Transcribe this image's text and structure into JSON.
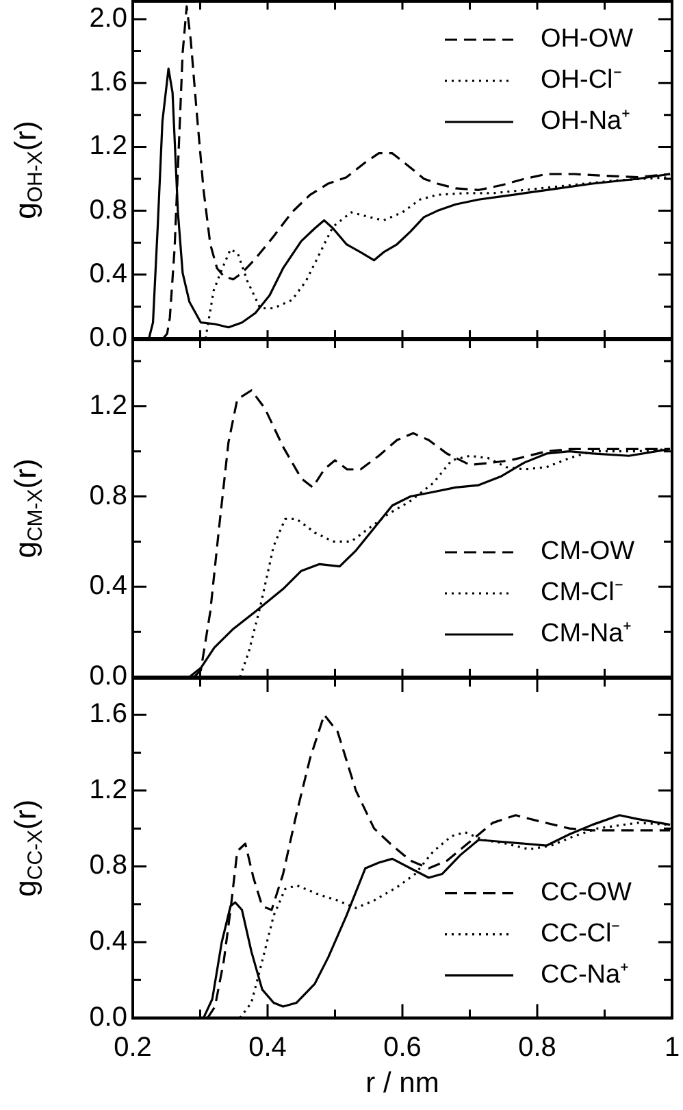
{
  "chart_data": [
    {
      "type": "line",
      "ylabel": "g$_{OH-X}$(r)",
      "xlim": [
        0.2,
        1.0
      ],
      "xticks": [
        {
          "value": 0.2,
          "label": null
        },
        {
          "value": 0.3,
          "label": null
        },
        {
          "value": 0.4,
          "label": null
        },
        {
          "value": 0.5,
          "label": null
        },
        {
          "value": 0.6,
          "label": null
        },
        {
          "value": 0.7,
          "label": null
        },
        {
          "value": 0.8,
          "label": null
        },
        {
          "value": 0.9,
          "label": null
        },
        {
          "value": 1.0,
          "label": null
        }
      ],
      "ylim": [
        0,
        2.12
      ],
      "yticks": [
        {
          "value": 0,
          "label": "0.0"
        },
        {
          "value": 0.2,
          "label": null
        },
        0.4,
        {
          "value": 0.6,
          "label": null
        },
        0.8,
        {
          "value": 1.0,
          "label": null
        },
        1.2,
        {
          "value": 1.4,
          "label": null
        },
        1.6,
        {
          "value": 1.8,
          "label": null
        },
        {
          "value": 2.0,
          "label": "2.0"
        }
      ],
      "tick_labels": "y",
      "legend": "top right",
      "marker": "none",
      "series": [
        {
          "name": "OH-OW",
          "color": "#000000",
          "line_style": "dashed",
          "x": [
            0.245,
            0.251,
            0.255,
            0.262,
            0.269,
            0.274,
            0.28,
            0.286,
            0.295,
            0.305,
            0.315,
            0.325,
            0.335,
            0.349,
            0.362,
            0.382,
            0.409,
            0.436,
            0.463,
            0.49,
            0.517,
            0.544,
            0.565,
            0.585,
            0.612,
            0.632,
            0.652,
            0.679,
            0.713,
            0.747,
            0.781,
            0.814,
            0.855,
            0.895,
            0.949,
            0.997
          ],
          "values": [
            0,
            0.03,
            0.13,
            0.56,
            1.27,
            1.79,
            2.08,
            1.87,
            1.41,
            0.93,
            0.59,
            0.44,
            0.39,
            0.37,
            0.41,
            0.5,
            0.64,
            0.79,
            0.9,
            0.97,
            1.01,
            1.1,
            1.16,
            1.16,
            1.07,
            1.0,
            0.97,
            0.94,
            0.93,
            0.96,
            1.0,
            1.03,
            1.03,
            1.02,
            1.01,
            1.03
          ]
        },
        {
          "name": "OH-Cl⁻",
          "color": "#000000",
          "line_style": "dotted",
          "x": [
            0.308,
            0.32,
            0.33,
            0.345,
            0.356,
            0.37,
            0.389,
            0.409,
            0.436,
            0.457,
            0.477,
            0.497,
            0.524,
            0.551,
            0.572,
            0.6,
            0.626,
            0.652,
            0.693,
            0.734,
            0.781,
            0.849,
            0.916,
            0.997
          ],
          "values": [
            0,
            0.3,
            0.41,
            0.56,
            0.53,
            0.36,
            0.19,
            0.19,
            0.24,
            0.36,
            0.53,
            0.7,
            0.79,
            0.76,
            0.74,
            0.79,
            0.87,
            0.9,
            0.91,
            0.91,
            0.93,
            0.96,
            0.99,
            1.01
          ]
        },
        {
          "name": "OH-Na⁺",
          "color": "#000000",
          "line_style": "solid",
          "x": [
            0.224,
            0.23,
            0.237,
            0.244,
            0.253,
            0.259,
            0.267,
            0.274,
            0.284,
            0.301,
            0.322,
            0.342,
            0.362,
            0.382,
            0.403,
            0.423,
            0.45,
            0.47,
            0.484,
            0.497,
            0.517,
            0.538,
            0.558,
            0.572,
            0.592,
            0.612,
            0.632,
            0.652,
            0.679,
            0.713,
            0.747,
            0.781,
            0.814,
            0.882,
            0.949,
            0.997
          ],
          "values": [
            0,
            0.1,
            0.7,
            1.36,
            1.69,
            1.54,
            0.79,
            0.41,
            0.23,
            0.1,
            0.09,
            0.07,
            0.1,
            0.16,
            0.27,
            0.44,
            0.61,
            0.69,
            0.74,
            0.69,
            0.59,
            0.54,
            0.49,
            0.54,
            0.59,
            0.67,
            0.76,
            0.8,
            0.84,
            0.87,
            0.89,
            0.91,
            0.93,
            0.97,
            1.0,
            1.03
          ]
        }
      ]
    },
    {
      "type": "line",
      "ylabel": "g$_{CM-X}$(r)",
      "xlim": [
        0.2,
        1.0
      ],
      "xticks": [
        {
          "value": 0.2,
          "label": null
        },
        {
          "value": 0.3,
          "label": null
        },
        {
          "value": 0.4,
          "label": null
        },
        {
          "value": 0.5,
          "label": null
        },
        {
          "value": 0.6,
          "label": null
        },
        {
          "value": 0.7,
          "label": null
        },
        {
          "value": 0.8,
          "label": null
        },
        {
          "value": 0.9,
          "label": null
        },
        {
          "value": 1.0,
          "label": null
        }
      ],
      "ylim": [
        0,
        1.5
      ],
      "yticks": [
        {
          "value": 0,
          "label": "0.0"
        },
        {
          "value": 0.2,
          "label": null
        },
        0.4,
        {
          "value": 0.6,
          "label": null
        },
        0.8,
        {
          "value": 1.0,
          "label": null
        },
        1.2,
        {
          "value": 1.4,
          "label": null
        }
      ],
      "tick_labels": "y",
      "legend": "bottom right",
      "marker": "none",
      "series": [
        {
          "name": "CM-OW",
          "color": "#000000",
          "line_style": "dashed",
          "x": [
            0.291,
            0.301,
            0.315,
            0.328,
            0.342,
            0.355,
            0.376,
            0.396,
            0.423,
            0.45,
            0.467,
            0.484,
            0.5,
            0.518,
            0.538,
            0.565,
            0.592,
            0.616,
            0.639,
            0.666,
            0.7,
            0.734,
            0.76,
            0.814,
            0.848,
            0.916,
            0.997
          ],
          "values": [
            0,
            0.03,
            0.29,
            0.66,
            1.04,
            1.23,
            1.27,
            1.19,
            1.02,
            0.88,
            0.84,
            0.92,
            0.96,
            0.92,
            0.92,
            0.98,
            1.05,
            1.08,
            1.05,
            0.99,
            0.94,
            0.95,
            0.96,
            1.0,
            1.01,
            1.01,
            1.01
          ]
        },
        {
          "name": "CM-Cl⁻",
          "color": "#000000",
          "line_style": "dotted",
          "x": [
            0.359,
            0.372,
            0.389,
            0.409,
            0.426,
            0.443,
            0.47,
            0.497,
            0.524,
            0.551,
            0.578,
            0.612,
            0.646,
            0.673,
            0.7,
            0.727,
            0.754,
            0.781,
            0.814,
            0.848,
            0.882,
            0.949,
            0.997
          ],
          "values": [
            0,
            0.11,
            0.31,
            0.58,
            0.7,
            0.7,
            0.64,
            0.6,
            0.6,
            0.66,
            0.72,
            0.78,
            0.86,
            0.96,
            0.98,
            0.97,
            0.93,
            0.92,
            0.93,
            0.97,
            1.0,
            1.0,
            1.01
          ]
        },
        {
          "name": "CM-Na⁺",
          "color": "#000000",
          "line_style": "solid",
          "x": [
            0.284,
            0.301,
            0.321,
            0.348,
            0.382,
            0.423,
            0.45,
            0.477,
            0.507,
            0.531,
            0.558,
            0.585,
            0.612,
            0.646,
            0.679,
            0.713,
            0.747,
            0.781,
            0.814,
            0.848,
            0.882,
            0.936,
            0.997
          ],
          "values": [
            0,
            0.04,
            0.13,
            0.21,
            0.29,
            0.39,
            0.47,
            0.5,
            0.49,
            0.56,
            0.66,
            0.76,
            0.8,
            0.82,
            0.84,
            0.85,
            0.89,
            0.95,
            0.99,
            1.0,
            0.99,
            0.98,
            1.01
          ]
        }
      ]
    },
    {
      "type": "line",
      "xlabel": "r / nm",
      "ylabel": "g$_{CC-X}$(r)",
      "xlim": [
        0.2,
        1.0
      ],
      "xticks": [
        0.2,
        {
          "value": 0.3,
          "label": null
        },
        0.4,
        {
          "value": 0.5,
          "label": null
        },
        0.6,
        {
          "value": 0.7,
          "label": null
        },
        0.8,
        {
          "value": 0.9,
          "label": null
        },
        {
          "value": 1.0,
          "label": "1"
        }
      ],
      "ylim": [
        0,
        1.8
      ],
      "yticks": [
        {
          "value": 0,
          "label": "0.0"
        },
        {
          "value": 0.2,
          "label": null
        },
        0.4,
        {
          "value": 0.6,
          "label": null
        },
        0.8,
        {
          "value": 1.0,
          "label": null
        },
        1.2,
        {
          "value": 1.4,
          "label": null
        },
        1.6
      ],
      "legend": "bottom right",
      "marker": "none",
      "series": [
        {
          "name": "CC-OW",
          "color": "#000000",
          "line_style": "dashed",
          "x": [
            0.311,
            0.322,
            0.335,
            0.345,
            0.355,
            0.367,
            0.379,
            0.392,
            0.406,
            0.423,
            0.443,
            0.463,
            0.484,
            0.504,
            0.531,
            0.558,
            0.585,
            0.612,
            0.639,
            0.666,
            0.7,
            0.734,
            0.768,
            0.801,
            0.848,
            0.882,
            0.997
          ],
          "values": [
            0,
            0.06,
            0.3,
            0.57,
            0.88,
            0.92,
            0.74,
            0.59,
            0.57,
            0.76,
            1.08,
            1.37,
            1.6,
            1.51,
            1.2,
            1.0,
            0.91,
            0.83,
            0.79,
            0.83,
            0.93,
            1.03,
            1.07,
            1.04,
            1.0,
            0.99,
            0.99
          ]
        },
        {
          "name": "CC-Cl⁻",
          "color": "#000000",
          "line_style": "dotted",
          "x": [
            0.359,
            0.376,
            0.392,
            0.409,
            0.426,
            0.443,
            0.477,
            0.504,
            0.531,
            0.558,
            0.592,
            0.619,
            0.646,
            0.673,
            0.693,
            0.72,
            0.754,
            0.788,
            0.821,
            0.855,
            0.889,
            0.949,
            0.997
          ],
          "values": [
            0,
            0.08,
            0.3,
            0.54,
            0.68,
            0.7,
            0.65,
            0.62,
            0.58,
            0.62,
            0.69,
            0.76,
            0.88,
            0.96,
            0.98,
            0.94,
            0.92,
            0.89,
            0.91,
            0.96,
            1.0,
            1.03,
            1.02
          ]
        },
        {
          "name": "CC-Na⁺",
          "color": "#000000",
          "line_style": "solid",
          "x": [
            0.305,
            0.318,
            0.332,
            0.345,
            0.352,
            0.362,
            0.376,
            0.392,
            0.409,
            0.423,
            0.443,
            0.47,
            0.49,
            0.517,
            0.545,
            0.565,
            0.585,
            0.612,
            0.639,
            0.659,
            0.686,
            0.713,
            0.747,
            0.781,
            0.814,
            0.848,
            0.882,
            0.922,
            0.949,
            0.997
          ],
          "values": [
            0,
            0.1,
            0.4,
            0.59,
            0.61,
            0.57,
            0.35,
            0.15,
            0.08,
            0.06,
            0.08,
            0.18,
            0.32,
            0.54,
            0.79,
            0.82,
            0.84,
            0.79,
            0.74,
            0.76,
            0.86,
            0.94,
            0.93,
            0.92,
            0.91,
            0.97,
            1.02,
            1.07,
            1.05,
            1.02
          ]
        }
      ]
    }
  ]
}
